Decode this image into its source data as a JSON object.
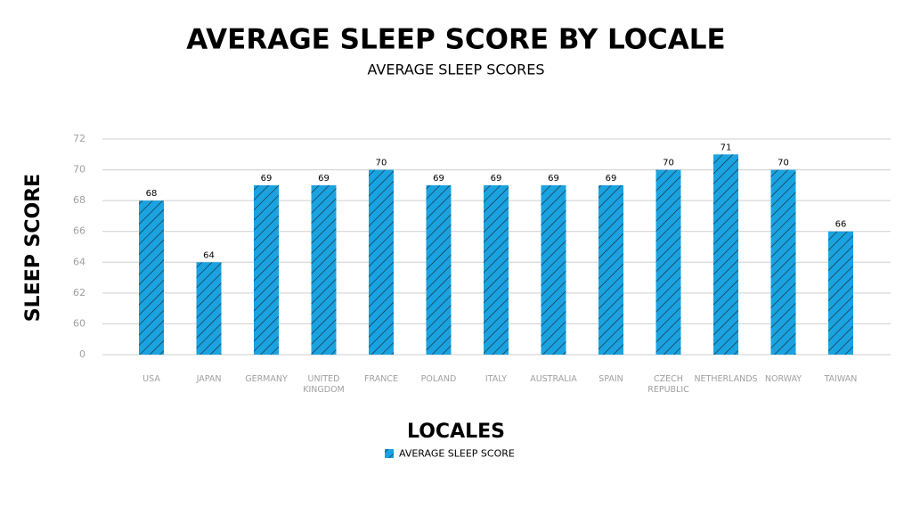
{
  "chart_data": {
    "type": "bar",
    "title": "AVERAGE SLEEP SCORE BY LOCALE",
    "subtitle": "AVERAGE SLEEP SCORES",
    "x_label": "LOCALES",
    "y_label": "SLEEP SCORE",
    "categories": [
      "USA",
      "JAPAN",
      "GERMANY",
      "UNITED KINGDOM",
      "FRANCE",
      "POLAND",
      "ITALY",
      "AUSTRALIA",
      "SPAIN",
      "CZECH REPUBLIC",
      "NETHERLANDS",
      "NORWAY",
      "TAIWAN"
    ],
    "series": [
      {
        "name": "AVERAGE SLEEP SCORE",
        "color": "#1aa3e0",
        "values": [
          68,
          64,
          69,
          69,
          70,
          69,
          69,
          69,
          69,
          70,
          71,
          70,
          66
        ]
      }
    ],
    "ylim": [
      0,
      72
    ],
    "yticks": [
      0,
      60,
      62,
      64,
      66,
      68,
      70,
      72
    ],
    "grid": true,
    "legend": "bottom"
  }
}
